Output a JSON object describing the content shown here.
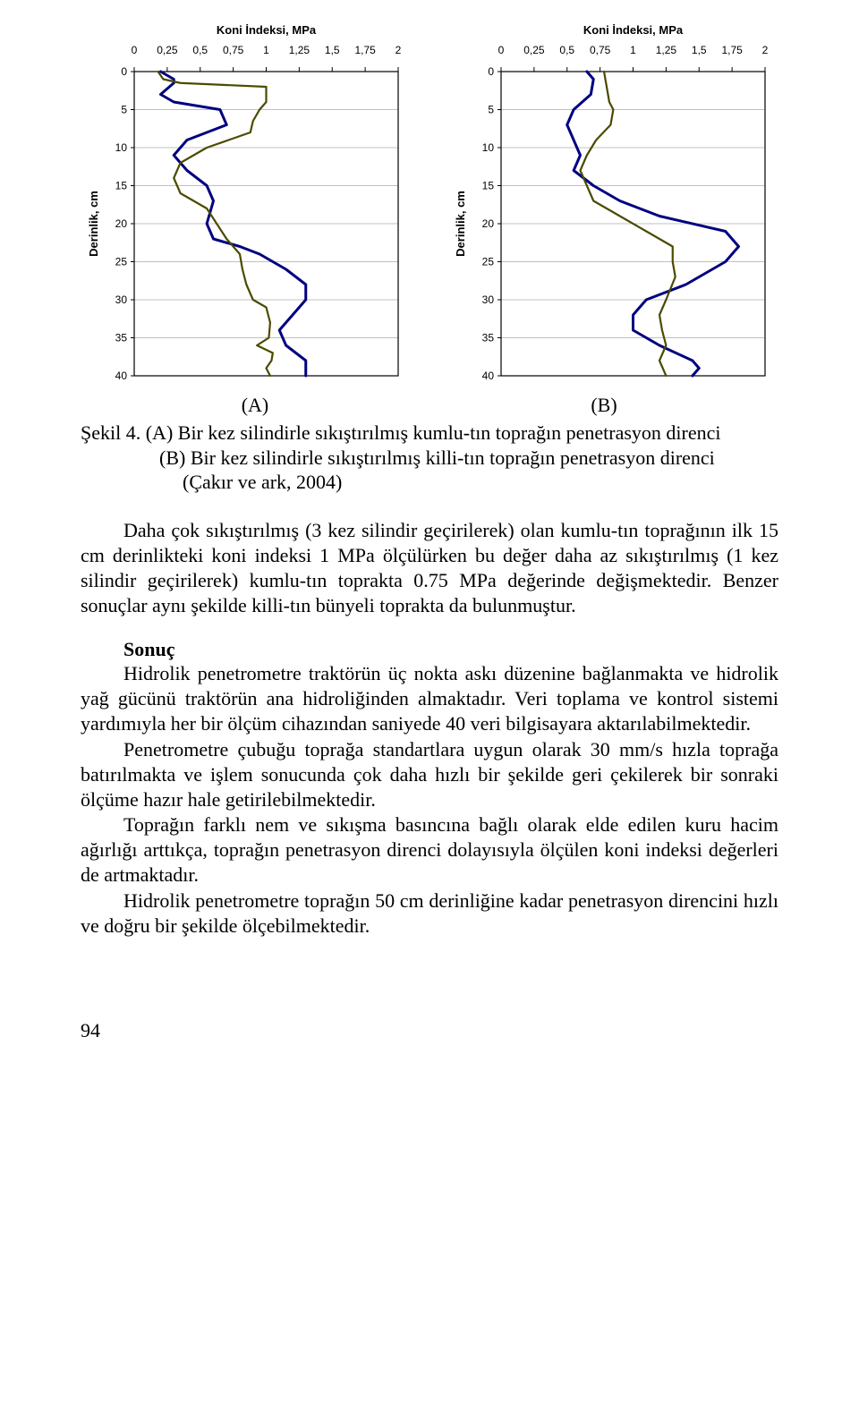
{
  "chart_left": {
    "type": "line",
    "title": "Koni İndeksi, MPa",
    "xlabel": "",
    "ylabel": "Derinlik, cm",
    "x_ticks": [
      0,
      0.25,
      0.5,
      0.75,
      1,
      1.25,
      1.5,
      1.75,
      2
    ],
    "x_tick_labels": [
      "0",
      "0,25",
      "0,5",
      "0,75",
      "1",
      "1,25",
      "1,5",
      "1,75",
      "2"
    ],
    "y_ticks": [
      0,
      5,
      10,
      15,
      20,
      25,
      30,
      35,
      40
    ],
    "xlim": [
      0,
      2
    ],
    "ylim": [
      40,
      0
    ],
    "title_fontsize": 13,
    "tick_fontsize": 12,
    "ylabel_fontsize": 13,
    "title_weight": "bold",
    "background_color": "#ffffff",
    "border_color": "#000000",
    "grid_color": "#c0c0c0",
    "grid_on": true,
    "series": [
      {
        "name": "series-a",
        "color": "#000080",
        "line_width": 3.0,
        "points": [
          [
            0.2,
            0
          ],
          [
            0.25,
            0.5
          ],
          [
            0.3,
            1
          ],
          [
            0.3,
            1.5
          ],
          [
            0.2,
            3
          ],
          [
            0.3,
            4
          ],
          [
            0.65,
            5
          ],
          [
            0.7,
            7
          ],
          [
            0.4,
            9
          ],
          [
            0.3,
            11
          ],
          [
            0.4,
            13
          ],
          [
            0.55,
            15
          ],
          [
            0.6,
            17
          ],
          [
            0.55,
            20
          ],
          [
            0.6,
            22
          ],
          [
            0.8,
            23
          ],
          [
            0.95,
            24
          ],
          [
            1.15,
            26
          ],
          [
            1.3,
            28
          ],
          [
            1.3,
            30
          ],
          [
            1.2,
            32
          ],
          [
            1.1,
            34
          ],
          [
            1.15,
            36
          ],
          [
            1.3,
            38
          ],
          [
            1.3,
            40
          ]
        ]
      },
      {
        "name": "series-b",
        "color": "#4b4b00",
        "line_width": 2.2,
        "points": [
          [
            0.18,
            0
          ],
          [
            0.22,
            1
          ],
          [
            0.35,
            1.5
          ],
          [
            1.0,
            2
          ],
          [
            1.0,
            4
          ],
          [
            0.95,
            5
          ],
          [
            0.9,
            6.5
          ],
          [
            0.88,
            8
          ],
          [
            0.55,
            10
          ],
          [
            0.35,
            12
          ],
          [
            0.3,
            14
          ],
          [
            0.35,
            16
          ],
          [
            0.55,
            18
          ],
          [
            0.7,
            22
          ],
          [
            0.8,
            24
          ],
          [
            0.82,
            26
          ],
          [
            0.85,
            28
          ],
          [
            0.9,
            30
          ],
          [
            1.0,
            31
          ],
          [
            1.03,
            33
          ],
          [
            1.02,
            35
          ],
          [
            0.93,
            36
          ],
          [
            1.05,
            37
          ],
          [
            1.04,
            38
          ],
          [
            1.0,
            39
          ],
          [
            1.03,
            40
          ]
        ]
      }
    ]
  },
  "chart_right": {
    "type": "line",
    "title": "Koni İndeksi, MPa",
    "xlabel": "",
    "ylabel": "Derinlik, cm",
    "x_ticks": [
      0,
      0.25,
      0.5,
      0.75,
      1,
      1.25,
      1.5,
      1.75,
      2
    ],
    "x_tick_labels": [
      "0",
      "0,25",
      "0,5",
      "0,75",
      "1",
      "1,25",
      "1,5",
      "1,75",
      "2"
    ],
    "y_ticks": [
      0,
      5,
      10,
      15,
      20,
      25,
      30,
      35,
      40
    ],
    "xlim": [
      0,
      2
    ],
    "ylim": [
      40,
      0
    ],
    "title_fontsize": 13,
    "tick_fontsize": 12,
    "ylabel_fontsize": 13,
    "title_weight": "bold",
    "background_color": "#ffffff",
    "border_color": "#000000",
    "grid_color": "#c0c0c0",
    "grid_on": true,
    "series": [
      {
        "name": "series-a",
        "color": "#000080",
        "line_width": 3.0,
        "points": [
          [
            0.65,
            0
          ],
          [
            0.7,
            1
          ],
          [
            0.68,
            3
          ],
          [
            0.55,
            5
          ],
          [
            0.5,
            7
          ],
          [
            0.55,
            9
          ],
          [
            0.6,
            11
          ],
          [
            0.55,
            13
          ],
          [
            0.7,
            15
          ],
          [
            0.9,
            17
          ],
          [
            1.2,
            19
          ],
          [
            1.7,
            21
          ],
          [
            1.8,
            23
          ],
          [
            1.7,
            25
          ],
          [
            1.6,
            26
          ],
          [
            1.4,
            28
          ],
          [
            1.1,
            30
          ],
          [
            1.0,
            32
          ],
          [
            1.0,
            34
          ],
          [
            1.2,
            36
          ],
          [
            1.45,
            38
          ],
          [
            1.5,
            39
          ],
          [
            1.45,
            40
          ]
        ]
      },
      {
        "name": "series-b",
        "color": "#4b4b00",
        "line_width": 2.2,
        "points": [
          [
            0.78,
            0
          ],
          [
            0.8,
            2
          ],
          [
            0.82,
            4
          ],
          [
            0.85,
            5
          ],
          [
            0.83,
            7
          ],
          [
            0.72,
            9
          ],
          [
            0.65,
            11
          ],
          [
            0.6,
            13
          ],
          [
            0.65,
            15
          ],
          [
            0.7,
            17
          ],
          [
            0.9,
            19
          ],
          [
            1.1,
            21
          ],
          [
            1.3,
            23
          ],
          [
            1.3,
            25
          ],
          [
            1.32,
            27
          ],
          [
            1.25,
            30
          ],
          [
            1.2,
            32
          ],
          [
            1.22,
            34
          ],
          [
            1.25,
            36
          ],
          [
            1.2,
            38
          ],
          [
            1.25,
            40
          ]
        ]
      }
    ]
  },
  "chart_labels": {
    "left": "(A)",
    "right": "(B)"
  },
  "caption": {
    "line1": "Şekil 4. (A) Bir kez silindirle sıkıştırılmış kumlu-tın toprağın penetrasyon direnci",
    "line2": "(B) Bir kez silindirle sıkıştırılmış killi-tın toprağın penetrasyon direnci",
    "line3": "(Çakır ve ark, 2004)"
  },
  "paragraph1": "Daha çok sıkıştırılmış (3 kez silindir geçirilerek) olan kumlu-tın toprağının ilk 15 cm derinlikteki koni indeksi 1 MPa ölçülürken bu değer daha az sıkıştırılmış (1 kez silindir geçirilerek) kumlu-tın toprakta 0.75 MPa değerinde değişmektedir. Benzer sonuçlar aynı şekilde killi-tın bünyeli toprakta da bulunmuştur.",
  "heading": "Sonuç",
  "paragraph2": "Hidrolik penetrometre traktörün üç nokta askı düzenine bağlanmakta ve hidrolik yağ gücünü traktörün ana hidroliğinden almaktadır. Veri toplama ve kontrol sistemi yardımıyla her bir ölçüm cihazından saniyede 40 veri bilgisayara aktarılabilmektedir.",
  "paragraph3": "Penetrometre çubuğu toprağa standartlara uygun olarak 30 mm/s hızla toprağa batırılmakta ve işlem sonucunda çok daha hızlı bir şekilde geri çekilerek bir sonraki ölçüme hazır hale getirilebilmektedir.",
  "paragraph4": "Toprağın farklı nem ve sıkışma basıncına bağlı olarak elde edilen kuru hacim ağırlığı arttıkça, toprağın penetrasyon direnci dolayısıyla ölçülen koni indeksi değerleri de artmaktadır.",
  "paragraph5": "Hidrolik penetrometre toprağın 50 cm derinliğine kadar penetrasyon direncini hızlı ve doğru bir şekilde ölçebilmektedir.",
  "page_number": "94"
}
